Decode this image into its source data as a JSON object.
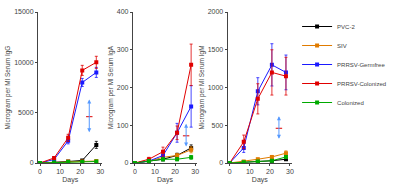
{
  "chart_data": [
    {
      "type": "line",
      "xlabel": "Days",
      "ylabel": "Microgram per Ml Serum IgG",
      "x": [
        0,
        7,
        14,
        21,
        28
      ],
      "xlim": [
        -1,
        31
      ],
      "xticks": [
        0,
        10,
        20,
        30
      ],
      "ylim": [
        0,
        15000
      ],
      "yticks": [
        0,
        5000,
        10000,
        15000
      ],
      "grid": false,
      "marker": "square",
      "line_style": "solid",
      "series": [
        {
          "name": "PVC-2",
          "color": "#000000",
          "values": [
            0,
            50,
            150,
            250,
            1800
          ],
          "errors": [
            0,
            20,
            40,
            60,
            350
          ]
        },
        {
          "name": "SIV",
          "color": "#e07b00",
          "values": [
            0,
            50,
            150,
            150,
            200
          ],
          "errors": [
            0,
            20,
            30,
            30,
            50
          ]
        },
        {
          "name": "PRRSV-Germfree",
          "color": "#1a1aff",
          "values": [
            0,
            350,
            2200,
            8000,
            9000
          ],
          "errors": [
            0,
            80,
            300,
            400,
            500
          ]
        },
        {
          "name": "PRRSV-Colonized",
          "color": "#e00000",
          "values": [
            0,
            500,
            2500,
            9200,
            10000
          ],
          "errors": [
            0,
            120,
            350,
            500,
            600
          ]
        },
        {
          "name": "Colonized",
          "color": "#00aa00",
          "values": [
            0,
            50,
            100,
            100,
            150
          ],
          "errors": [
            0,
            15,
            25,
            25,
            35
          ]
        }
      ],
      "arrow": {
        "x": 24.5,
        "y_from": 2900,
        "y_to": 6300,
        "color": "#5599ff"
      },
      "hline": {
        "y": 4600,
        "x_from": 22.9,
        "x_to": 26.1,
        "color": "#dd0000"
      }
    },
    {
      "type": "line",
      "xlabel": "Days",
      "ylabel": "Microgram per Ml Serum IgA",
      "x": [
        0,
        7,
        14,
        21,
        28
      ],
      "xlim": [
        -1,
        31
      ],
      "xticks": [
        0,
        10,
        20,
        30
      ],
      "ylim": [
        0,
        400
      ],
      "yticks": [
        0,
        100,
        200,
        300,
        400
      ],
      "grid": false,
      "marker": "square",
      "line_style": "solid",
      "series": [
        {
          "name": "PVC-2",
          "color": "#000000",
          "values": [
            0,
            5,
            10,
            20,
            40
          ],
          "errors": [
            0,
            3,
            4,
            6,
            8
          ]
        },
        {
          "name": "SIV",
          "color": "#e07b00",
          "values": [
            0,
            5,
            15,
            20,
            35
          ],
          "errors": [
            0,
            3,
            5,
            5,
            8
          ]
        },
        {
          "name": "PRRSV-Germfree",
          "color": "#1a1aff",
          "values": [
            0,
            5,
            20,
            80,
            150
          ],
          "errors": [
            0,
            3,
            8,
            25,
            55
          ]
        },
        {
          "name": "PRRSV-Colonized",
          "color": "#e00000",
          "values": [
            0,
            10,
            30,
            80,
            260
          ],
          "errors": [
            0,
            5,
            12,
            18,
            55
          ]
        },
        {
          "name": "Colonized",
          "color": "#00aa00",
          "values": [
            0,
            5,
            10,
            10,
            15
          ],
          "errors": [
            0,
            2,
            4,
            4,
            5
          ]
        }
      ],
      "arrow": {
        "x": 25.5,
        "y_from": 40,
        "y_to": 104,
        "color": "#5599ff"
      },
      "hline": {
        "y": 72,
        "x_from": 23.9,
        "x_to": 27.1,
        "color": "#dd0000"
      }
    },
    {
      "type": "line",
      "xlabel": "Days",
      "ylabel": "Microgram per Ml Serum IgM",
      "x": [
        0,
        7,
        14,
        21,
        28
      ],
      "xlim": [
        -1,
        31
      ],
      "xticks": [
        0,
        10,
        20,
        30
      ],
      "ylim": [
        0,
        2000
      ],
      "yticks": [
        0,
        500,
        1000,
        1500,
        2000
      ],
      "grid": false,
      "marker": "square",
      "line_style": "solid",
      "legend": "right",
      "series": [
        {
          "name": "PVC-2",
          "color": "#000000",
          "values": [
            0,
            10,
            20,
            30,
            50
          ],
          "errors": [
            0,
            5,
            8,
            10,
            15
          ]
        },
        {
          "name": "SIV",
          "color": "#e07b00",
          "values": [
            0,
            20,
            50,
            80,
            130
          ],
          "errors": [
            0,
            8,
            15,
            20,
            30
          ]
        },
        {
          "name": "PRRSV-Germfree",
          "color": "#1a1aff",
          "values": [
            0,
            200,
            950,
            1300,
            1200
          ],
          "errors": [
            0,
            60,
            180,
            280,
            230
          ]
        },
        {
          "name": "PRRSV-Colonized",
          "color": "#e00000",
          "values": [
            0,
            280,
            850,
            1200,
            1150
          ],
          "errors": [
            0,
            90,
            200,
            300,
            250
          ]
        },
        {
          "name": "Colonized",
          "color": "#00aa00",
          "values": [
            0,
            10,
            20,
            30,
            80
          ],
          "errors": [
            0,
            5,
            8,
            10,
            20
          ]
        }
      ],
      "arrow": {
        "x": 24.5,
        "y_from": 300,
        "y_to": 620,
        "color": "#5599ff"
      },
      "hline": {
        "y": 460,
        "x_from": 22.9,
        "x_to": 26.1,
        "color": "#dd0000"
      }
    }
  ]
}
